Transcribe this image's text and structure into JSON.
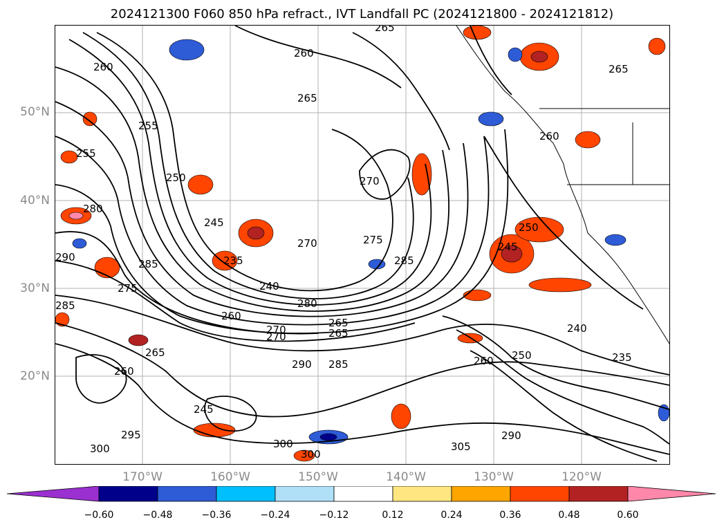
{
  "title": "2024121300 F060 850 hPa refract., IVT Landfall PC (2024121800 - 2024121812)",
  "lat_labels": [
    "50°N",
    "40°N",
    "30°N",
    "20°N"
  ],
  "lon_labels": [
    "170°W",
    "160°W",
    "150°W",
    "140°W",
    "130°W",
    "120°W"
  ],
  "colorbar": {
    "ticks": [
      "−0.60",
      "−0.48",
      "−0.36",
      "−0.24",
      "−0.12",
      "0.12",
      "0.24",
      "0.36",
      "0.48",
      "0.60"
    ],
    "colors": [
      "#9b30d0",
      "#00008b",
      "#2e5bd6",
      "#00bfff",
      "#b0e0f8",
      "#ffffff",
      "#ffe680",
      "#ffa500",
      "#ff4500",
      "#b22222",
      "#ff88aa"
    ]
  },
  "contour_labels": [
    "265",
    "260",
    "265",
    "255",
    "250",
    "245",
    "280",
    "290",
    "285",
    "240",
    "235",
    "270",
    "275",
    "285",
    "270",
    "265",
    "260",
    "250",
    "245",
    "240",
    "235",
    "250",
    "260",
    "265",
    "270",
    "280",
    "285",
    "290",
    "300",
    "295",
    "300",
    "300",
    "305",
    "290",
    "265",
    "260",
    "275",
    "285",
    "255",
    "260",
    "265",
    "260",
    "270",
    "245"
  ]
}
